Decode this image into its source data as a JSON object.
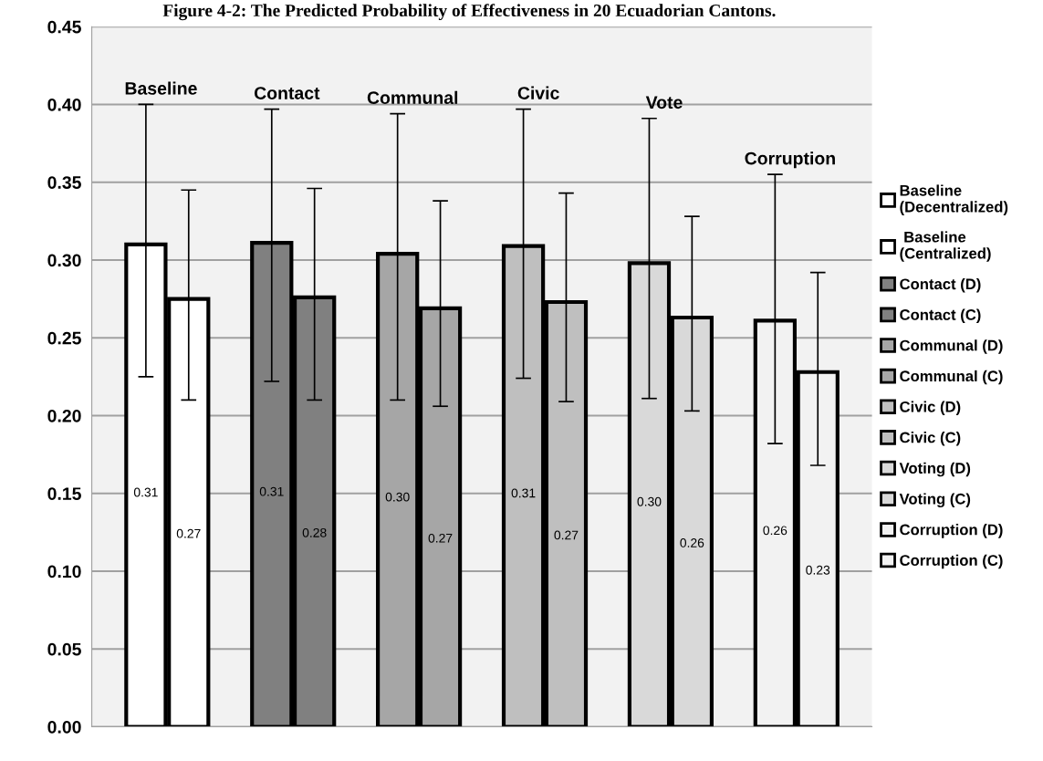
{
  "chart_data": {
    "type": "bar",
    "title": "Figure 4-2: The Predicted Probability of Effectiveness in 20 Ecuadorian Cantons.",
    "categories": [
      null,
      null,
      null,
      null,
      null,
      null
    ],
    "series": [
      {
        "name": "Baseline\n(Decentralized)",
        "color": "#ffffff",
        "values": [
          0.31,
          null,
          null,
          null,
          null,
          null
        ],
        "errors": [
          [
            0.225,
            0.4
          ],
          null,
          null,
          null,
          null,
          null
        ],
        "value_labels": [
          "0.31",
          null,
          null,
          null,
          null,
          null
        ]
      },
      {
        "name": " Baseline\n(Centralized)",
        "color": "#ffffff",
        "values": [
          0.275,
          null,
          null,
          null,
          null,
          null
        ],
        "errors": [
          [
            0.21,
            0.345
          ],
          null,
          null,
          null,
          null,
          null
        ],
        "value_labels": [
          "0.27",
          null,
          null,
          null,
          null,
          null
        ]
      },
      {
        "name": "Contact (D)",
        "color": "#808080",
        "values": [
          null,
          0.311,
          null,
          null,
          null,
          null
        ],
        "errors": [
          null,
          [
            0.222,
            0.397
          ],
          null,
          null,
          null,
          null
        ],
        "value_labels": [
          null,
          "0.31",
          null,
          null,
          null,
          null
        ]
      },
      {
        "name": "Contact (C)",
        "color": "#808080",
        "values": [
          null,
          0.276,
          null,
          null,
          null,
          null
        ],
        "errors": [
          null,
          [
            0.21,
            0.346
          ],
          null,
          null,
          null,
          null
        ],
        "value_labels": [
          null,
          "0.28",
          null,
          null,
          null,
          null
        ]
      },
      {
        "name": "Communal (D)",
        "color": "#a6a6a6",
        "values": [
          null,
          null,
          0.304,
          null,
          null,
          null
        ],
        "errors": [
          null,
          null,
          [
            0.21,
            0.394
          ],
          null,
          null,
          null
        ],
        "value_labels": [
          null,
          null,
          "0.30",
          null,
          null,
          null
        ]
      },
      {
        "name": "Communal (C)",
        "color": "#a6a6a6",
        "values": [
          null,
          null,
          0.269,
          null,
          null,
          null
        ],
        "errors": [
          null,
          null,
          [
            0.206,
            0.338
          ],
          null,
          null,
          null
        ],
        "value_labels": [
          null,
          null,
          "0.27",
          null,
          null,
          null
        ]
      },
      {
        "name": "Civic (D)",
        "color": "#bfbfbf",
        "values": [
          null,
          null,
          null,
          0.309,
          null,
          null
        ],
        "errors": [
          null,
          null,
          null,
          [
            0.224,
            0.397
          ],
          null,
          null
        ],
        "value_labels": [
          null,
          null,
          null,
          "0.31",
          null,
          null
        ]
      },
      {
        "name": "Civic (C)",
        "color": "#bfbfbf",
        "values": [
          null,
          null,
          null,
          0.273,
          null,
          null
        ],
        "errors": [
          null,
          null,
          null,
          [
            0.209,
            0.343
          ],
          null,
          null
        ],
        "value_labels": [
          null,
          null,
          null,
          "0.27",
          null,
          null
        ]
      },
      {
        "name": "Voting (D)",
        "color": "#d9d9d9",
        "values": [
          null,
          null,
          null,
          null,
          0.298,
          null
        ],
        "errors": [
          null,
          null,
          null,
          null,
          [
            0.211,
            0.391
          ],
          null
        ],
        "value_labels": [
          null,
          null,
          null,
          null,
          "0.30",
          null
        ]
      },
      {
        "name": "Voting (C)",
        "color": "#d9d9d9",
        "values": [
          null,
          null,
          null,
          null,
          0.263,
          null
        ],
        "errors": [
          null,
          null,
          null,
          null,
          [
            0.203,
            0.328
          ],
          null
        ],
        "value_labels": [
          null,
          null,
          null,
          null,
          "0.26",
          null
        ]
      },
      {
        "name": "Corruption (D)",
        "color": "#f2f2f2",
        "values": [
          null,
          null,
          null,
          null,
          null,
          0.261
        ],
        "errors": [
          null,
          null,
          null,
          null,
          null,
          [
            0.182,
            0.355
          ]
        ],
        "value_labels": [
          null,
          null,
          null,
          null,
          null,
          "0.26"
        ]
      },
      {
        "name": "Corruption (C)",
        "color": "#f2f2f2",
        "values": [
          null,
          null,
          null,
          null,
          null,
          0.228
        ],
        "errors": [
          null,
          null,
          null,
          null,
          null,
          [
            0.168,
            0.292
          ]
        ],
        "value_labels": [
          null,
          null,
          null,
          null,
          null,
          "0.23"
        ]
      }
    ],
    "annotations": [
      "Baseline",
      "Contact",
      "Communal",
      "Civic",
      "Vote",
      "Corruption"
    ],
    "ylim": [
      0,
      0.45
    ],
    "yticks": [
      {
        "value": 0,
        "label": "0.00"
      },
      {
        "value": 0.05,
        "label": "0.05"
      },
      {
        "value": 0.1,
        "label": "0.10"
      },
      {
        "value": 0.15,
        "label": "0.15"
      },
      {
        "value": 0.2,
        "label": "0.20"
      },
      {
        "value": 0.25,
        "label": "0.25"
      },
      {
        "value": 0.3,
        "label": "0.30"
      },
      {
        "value": 0.35,
        "label": "0.35"
      },
      {
        "value": 0.4,
        "label": "0.40"
      },
      {
        "value": 0.45,
        "label": "0.45"
      }
    ],
    "grid": "y",
    "legend": "right",
    "tick_labels": "y"
  }
}
